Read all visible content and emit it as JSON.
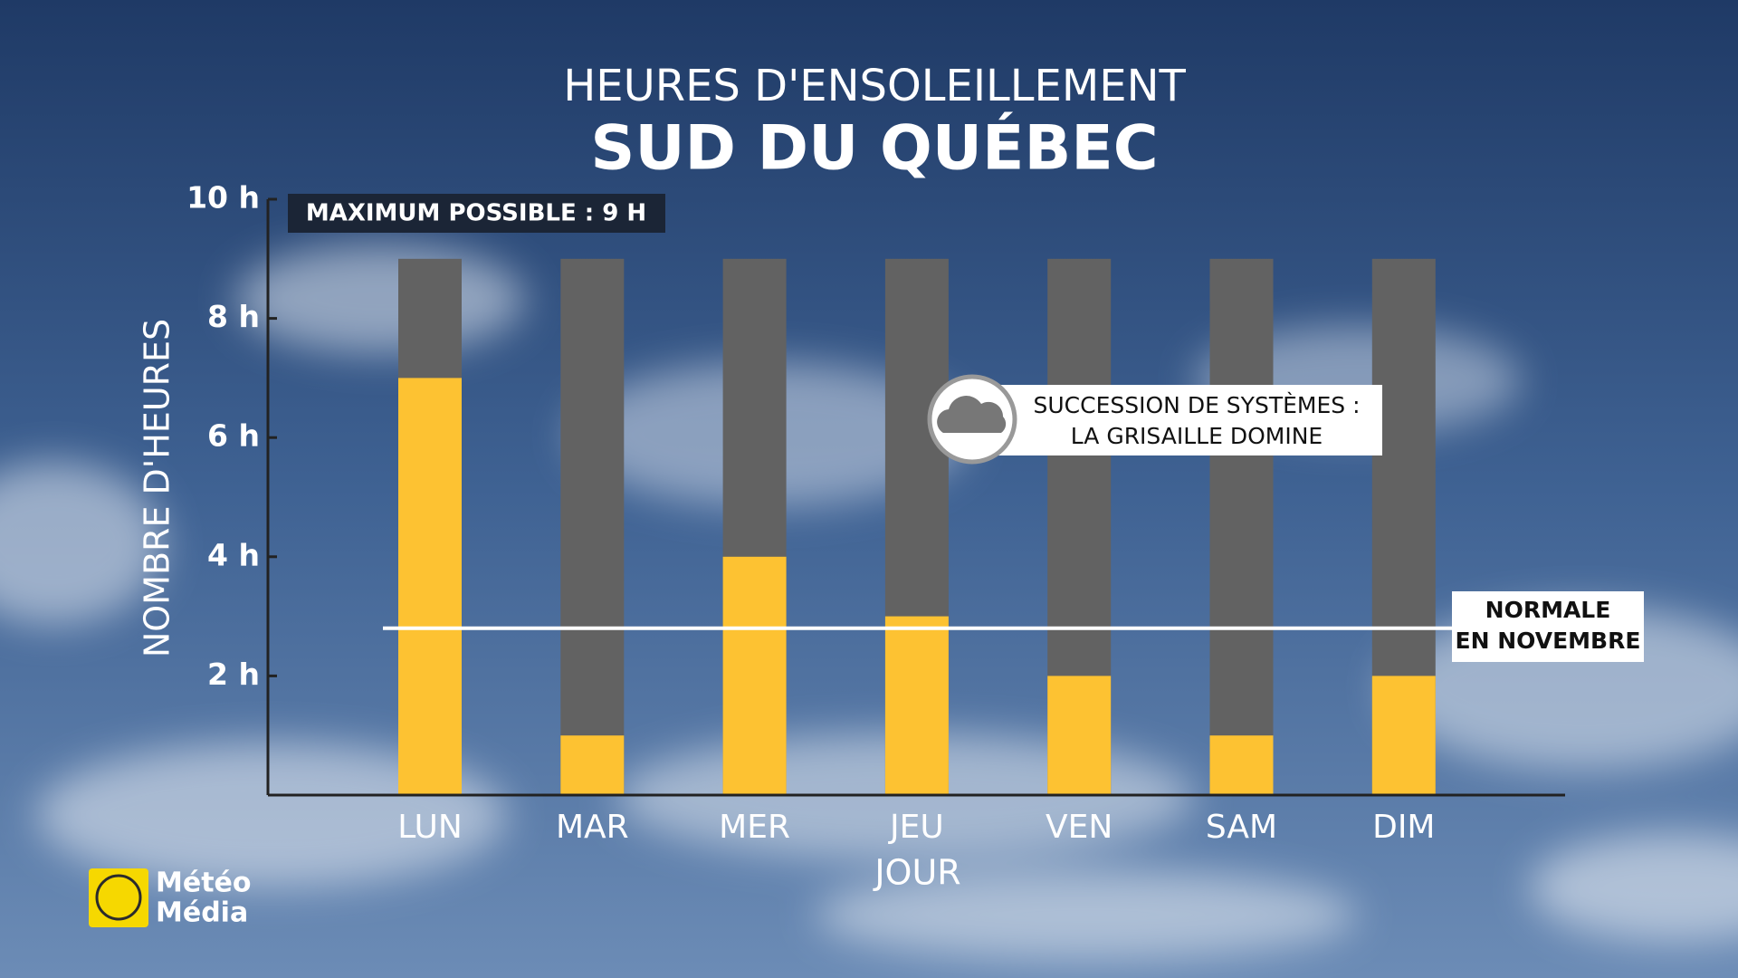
{
  "chart_data": {
    "type": "bar",
    "title": "HEURES D'ENSOLEILLEMENT",
    "subtitle": "SUD DU QUÉBEC",
    "y_label": "NOMBRE D'HEURES",
    "x_label": "JOUR",
    "categories": [
      "LUN",
      "MAR",
      "MER",
      "JEU",
      "VEN",
      "SAM",
      "DIM"
    ],
    "values": [
      7,
      1,
      4,
      3,
      2,
      1,
      2
    ],
    "color": "#fdc232",
    "max_possible": 9,
    "max_possible_color": "#626262",
    "max_possible_label": "MAXIMUM POSSIBLE : 9 H",
    "normal": 2.8,
    "normal_label": [
      "NORMALE",
      "EN NOVEMBRE"
    ],
    "annotation": [
      "SUCCESSION DE SYSTÈMES :",
      "LA GRISAILLE DOMINE"
    ],
    "ylim": [
      0,
      10
    ],
    "yticks": [
      {
        "value": 2,
        "label": "2 h"
      },
      {
        "value": 4,
        "label": "4 h"
      },
      {
        "value": 6,
        "label": "6 h"
      },
      {
        "value": 8,
        "label": "8 h"
      },
      {
        "value": 10,
        "label": "10 h"
      }
    ],
    "logo": [
      "Météo",
      "Média"
    ]
  }
}
